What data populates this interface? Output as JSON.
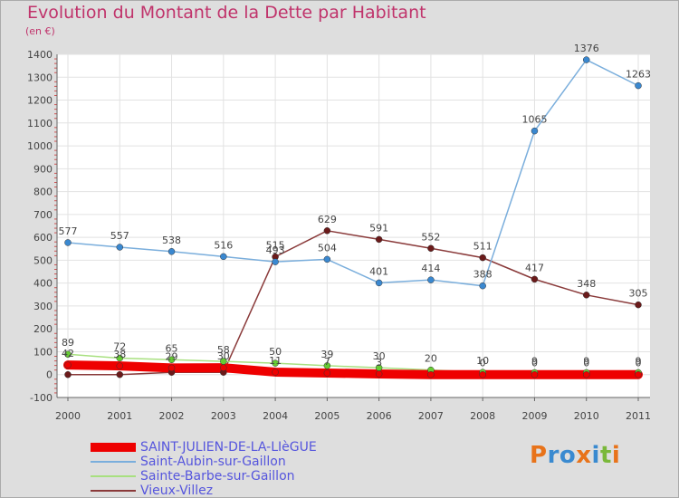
{
  "title": "Evolution du Montant de la Dette par Habitant",
  "subtitle": "(en €)",
  "logo_text": "Proxiti",
  "logo_colors": [
    "#e8731a",
    "#3a8ad0",
    "#3a8ad0",
    "#e8731a",
    "#3a8ad0",
    "#7ab83a",
    "#e8731a"
  ],
  "chart_data": {
    "type": "line",
    "x": [
      "2000",
      "2001",
      "2002",
      "2003",
      "2004",
      "2005",
      "2006",
      "2007",
      "2008",
      "2009",
      "2010",
      "2011"
    ],
    "ylim": [
      -100,
      1400
    ],
    "yticks": [
      -100,
      0,
      100,
      200,
      300,
      400,
      500,
      600,
      700,
      800,
      900,
      1000,
      1100,
      1200,
      1300,
      1400
    ],
    "grid": true,
    "legend_position": "bottom-left",
    "series": [
      {
        "name": "SAINT-JULIEN-DE-LA-LIèGUE",
        "color": "#ee0000",
        "marker": "#ee0000",
        "values": [
          42,
          38,
          29,
          30,
          11,
          7,
          3,
          0,
          0,
          0,
          0,
          0
        ],
        "labels": [
          "42",
          "38",
          "29",
          "30",
          "11",
          "7",
          "3",
          "",
          "0",
          "0",
          "0",
          "0"
        ]
      },
      {
        "name": "Saint-Aubin-sur-Gaillon",
        "color": "#7aaedc",
        "marker": "#3a88d0",
        "values": [
          577,
          557,
          538,
          516,
          493,
          504,
          401,
          414,
          388,
          1065,
          1376,
          1263
        ],
        "labels": [
          "577",
          "557",
          "538",
          "516",
          "493",
          "504",
          "401",
          "414",
          "388",
          "1065",
          "1376",
          "1263"
        ]
      },
      {
        "name": "Sainte-Barbe-sur-Gaillon",
        "color": "#a8e080",
        "marker": "#66cc33",
        "values": [
          89,
          72,
          65,
          58,
          50,
          39,
          30,
          20,
          10,
          9,
          9,
          9
        ],
        "labels": [
          "89",
          "72",
          "65",
          "58",
          "50",
          "39",
          "30",
          "20",
          "10",
          "9",
          "9",
          "9"
        ]
      },
      {
        "name": "Vieux-Villez",
        "color": "#8a3a3a",
        "marker": "#6b1a1a",
        "values": [
          0,
          0,
          10,
          10,
          515,
          629,
          591,
          552,
          511,
          417,
          348,
          305
        ],
        "labels": [
          "",
          "",
          "",
          "",
          "515",
          "629",
          "591",
          "552",
          "511",
          "417",
          "348",
          "305"
        ]
      }
    ]
  }
}
